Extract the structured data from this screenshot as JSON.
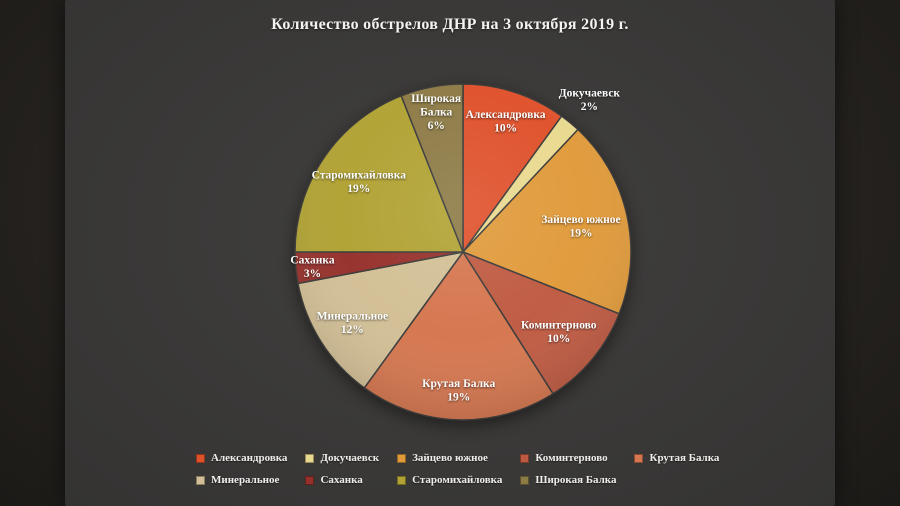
{
  "chart_data": {
    "type": "pie",
    "title": "Количество обстрелов ДНР на 3 октября 2019 г.",
    "categories": [
      "Александровка",
      "Докучаевск",
      "Зайцево южное",
      "Коминтерново",
      "Крутая Балка",
      "Минеральное",
      "Саханка",
      "Старомихайловка",
      "Широкая Балка"
    ],
    "values": [
      10,
      2,
      19,
      10,
      19,
      12,
      3,
      19,
      6
    ],
    "unit": "%",
    "colors": [
      "#df512b",
      "#e9d98f",
      "#e09a3a",
      "#bf5a42",
      "#d5764f",
      "#d2bf95",
      "#96302b",
      "#b1a233",
      "#8d7b46"
    ],
    "label_lines": [
      [
        "Александровка"
      ],
      [
        "Докучаевск"
      ],
      [
        "Зайцево южное"
      ],
      [
        "Коминтерново"
      ],
      [
        "Крутая Балка"
      ],
      [
        "Минеральное"
      ],
      [
        "Саханка"
      ],
      [
        "Старомихайловка"
      ],
      [
        "Широкая",
        "Балка"
      ]
    ],
    "outside_label_indices": [
      1
    ],
    "start_angle_deg": 0,
    "direction": "clockwise",
    "legend_position": "bottom",
    "grid": false
  }
}
